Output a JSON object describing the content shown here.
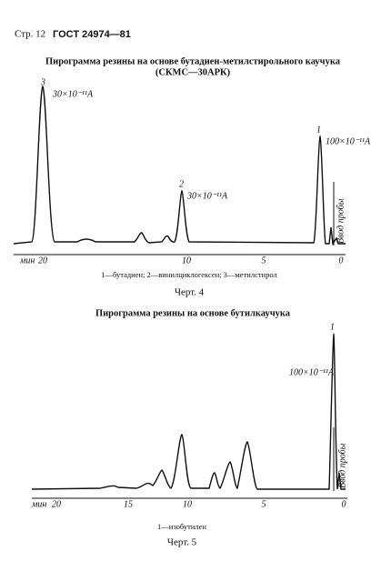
{
  "header": {
    "page": "Стр. 12",
    "standard": "ГОСТ 24974—81"
  },
  "figures": [
    {
      "title": "Пирограмма резины на основе бутадиен-метилстирольного каучука",
      "subtitle": "(СКМС—30АРК)",
      "peak_labels": [
        {
          "number": "3",
          "scale": "30×10⁻¹¹A"
        },
        {
          "number": "2",
          "scale": "30×10⁻¹¹A"
        },
        {
          "number": "1",
          "scale": "100×10⁻¹¹A"
        }
      ],
      "injection": "Ввод пробы",
      "axis_unit": "мин",
      "axis_ticks": [
        "20",
        "10",
        "5",
        "0"
      ],
      "legend": "1—бутадиен; 2—винилциклогексен; 3—метилстирол",
      "caption": "Черт. 4"
    },
    {
      "title": "Пирограмма резины на основе бутилкаучука",
      "peak_labels": [
        {
          "number": "1",
          "scale": "100×10⁻¹¹A"
        }
      ],
      "injection": "Ввод пробы",
      "axis_unit": "мин",
      "axis_ticks": [
        "20",
        "15",
        "10",
        "5",
        "0"
      ],
      "legend": "1—изобутилен",
      "caption": "Черт. 5"
    }
  ]
}
